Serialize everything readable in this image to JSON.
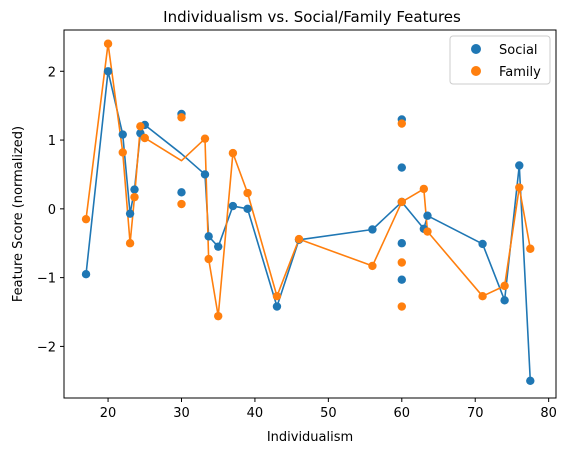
{
  "chart_data": {
    "type": "line",
    "title": "Individualism vs. Social/Family Features",
    "xlabel": "Individualism",
    "ylabel": "Feature Score (normalized)",
    "xlim": [
      14,
      81
    ],
    "ylim": [
      -2.75,
      2.6
    ],
    "xticks": [
      20,
      30,
      40,
      50,
      60,
      70,
      80
    ],
    "yticks": [
      -2,
      -1,
      0,
      1,
      2
    ],
    "ytick_labels": [
      "−2",
      "−1",
      "0",
      "1",
      "2"
    ],
    "legend_position": "top-right",
    "grid": false,
    "series": [
      {
        "name": "Social",
        "color": "#1f77b4",
        "points": [
          [
            17,
            -0.95
          ],
          [
            20,
            2.0
          ],
          [
            22,
            1.08
          ],
          [
            23,
            -0.07
          ],
          [
            23.6,
            0.28
          ],
          [
            24.4,
            1.1
          ],
          [
            25,
            1.22
          ],
          [
            30,
            1.38
          ],
          [
            30,
            0.24
          ],
          [
            33.2,
            0.5
          ],
          [
            33.7,
            -0.4
          ],
          [
            35,
            -0.55
          ],
          [
            37,
            0.04
          ],
          [
            39,
            0.0
          ],
          [
            43,
            -1.42
          ],
          [
            46,
            -0.45
          ],
          [
            56,
            -0.3
          ],
          [
            60,
            1.3
          ],
          [
            60,
            0.6
          ],
          [
            60,
            0.1
          ],
          [
            60,
            -0.5
          ],
          [
            60,
            -1.03
          ],
          [
            63,
            -0.29
          ],
          [
            63.5,
            -0.1
          ],
          [
            71,
            -0.51
          ],
          [
            74,
            -1.33
          ],
          [
            76,
            0.63
          ],
          [
            77.5,
            -2.5
          ]
        ],
        "line": [
          [
            17,
            -0.95
          ],
          [
            20,
            2.0
          ],
          [
            22,
            1.08
          ],
          [
            23,
            -0.07
          ],
          [
            23.6,
            0.28
          ],
          [
            24.4,
            1.1
          ],
          [
            25,
            1.22
          ],
          [
            30,
            0.8
          ],
          [
            33.2,
            0.5
          ],
          [
            33.7,
            -0.4
          ],
          [
            35,
            -0.55
          ],
          [
            37,
            0.04
          ],
          [
            39,
            0.0
          ],
          [
            43,
            -1.42
          ],
          [
            46,
            -0.45
          ],
          [
            56,
            -0.3
          ],
          [
            60,
            0.1
          ],
          [
            63,
            -0.29
          ],
          [
            63.5,
            -0.1
          ],
          [
            71,
            -0.51
          ],
          [
            74,
            -1.33
          ],
          [
            76,
            0.63
          ],
          [
            77.5,
            -2.5
          ]
        ]
      },
      {
        "name": "Family",
        "color": "#ff7f0e",
        "points": [
          [
            17,
            -0.15
          ],
          [
            20,
            2.4
          ],
          [
            22,
            0.82
          ],
          [
            23,
            -0.5
          ],
          [
            23.6,
            0.17
          ],
          [
            24.4,
            1.2
          ],
          [
            25,
            1.03
          ],
          [
            30,
            1.33
          ],
          [
            30,
            0.07
          ],
          [
            33.2,
            1.02
          ],
          [
            33.7,
            -0.73
          ],
          [
            35,
            -1.56
          ],
          [
            37,
            0.81
          ],
          [
            39,
            0.23
          ],
          [
            43,
            -1.27
          ],
          [
            46,
            -0.44
          ],
          [
            56,
            -0.83
          ],
          [
            60,
            1.24
          ],
          [
            60,
            0.1
          ],
          [
            60,
            -0.78
          ],
          [
            60,
            -1.42
          ],
          [
            63,
            0.29
          ],
          [
            63.5,
            -0.33
          ],
          [
            71,
            -1.27
          ],
          [
            74,
            -1.12
          ],
          [
            76,
            0.31
          ],
          [
            77.5,
            -0.58
          ]
        ],
        "line": [
          [
            17,
            -0.15
          ],
          [
            20,
            2.4
          ],
          [
            22,
            0.82
          ],
          [
            23,
            -0.5
          ],
          [
            23.6,
            0.17
          ],
          [
            24.4,
            1.2
          ],
          [
            25,
            1.03
          ],
          [
            30,
            0.7
          ],
          [
            33.2,
            1.02
          ],
          [
            33.7,
            -0.73
          ],
          [
            35,
            -1.56
          ],
          [
            37,
            0.81
          ],
          [
            39,
            0.23
          ],
          [
            43,
            -1.27
          ],
          [
            46,
            -0.44
          ],
          [
            56,
            -0.83
          ],
          [
            60,
            0.1
          ],
          [
            63,
            0.29
          ],
          [
            63.5,
            -0.33
          ],
          [
            71,
            -1.27
          ],
          [
            74,
            -1.12
          ],
          [
            76,
            0.31
          ],
          [
            77.5,
            -0.58
          ]
        ]
      }
    ]
  }
}
